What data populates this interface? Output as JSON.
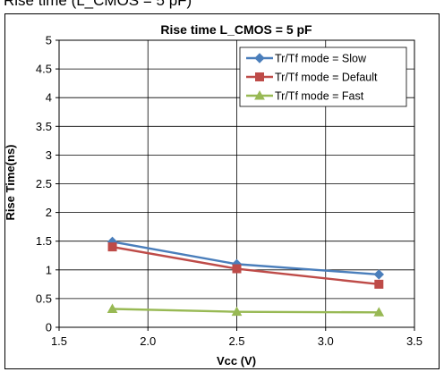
{
  "caption_fragment": "Rise time (L_CMOS = 5 pF)",
  "chart_data": {
    "type": "line",
    "title": "Rise time  L_CMOS = 5 pF",
    "xlabel": "Vcc (V)",
    "ylabel": "Rise Time(ns)",
    "xlim": [
      1.5,
      3.5
    ],
    "ylim": [
      0,
      5
    ],
    "xticks": [
      "1.5",
      "2.0",
      "2.5",
      "3.0",
      "3.5"
    ],
    "yticks": [
      "0",
      "0.5",
      "1",
      "1.5",
      "2",
      "2.5",
      "3",
      "3.5",
      "4",
      "4.5",
      "5"
    ],
    "grid": true,
    "legend_position": "top-right",
    "x": [
      1.8,
      2.5,
      3.3
    ],
    "series": [
      {
        "name": "Tr/Tf mode = Slow",
        "values": [
          1.49,
          1.1,
          0.92
        ],
        "color": "#4a7ebb",
        "marker": "diamond"
      },
      {
        "name": "Tr/Tf mode = Default",
        "values": [
          1.4,
          1.02,
          0.75
        ],
        "color": "#be4b48",
        "marker": "square"
      },
      {
        "name": "Tr/Tf mode = Fast",
        "values": [
          0.32,
          0.27,
          0.26
        ],
        "color": "#98b954",
        "marker": "triangle"
      }
    ]
  }
}
